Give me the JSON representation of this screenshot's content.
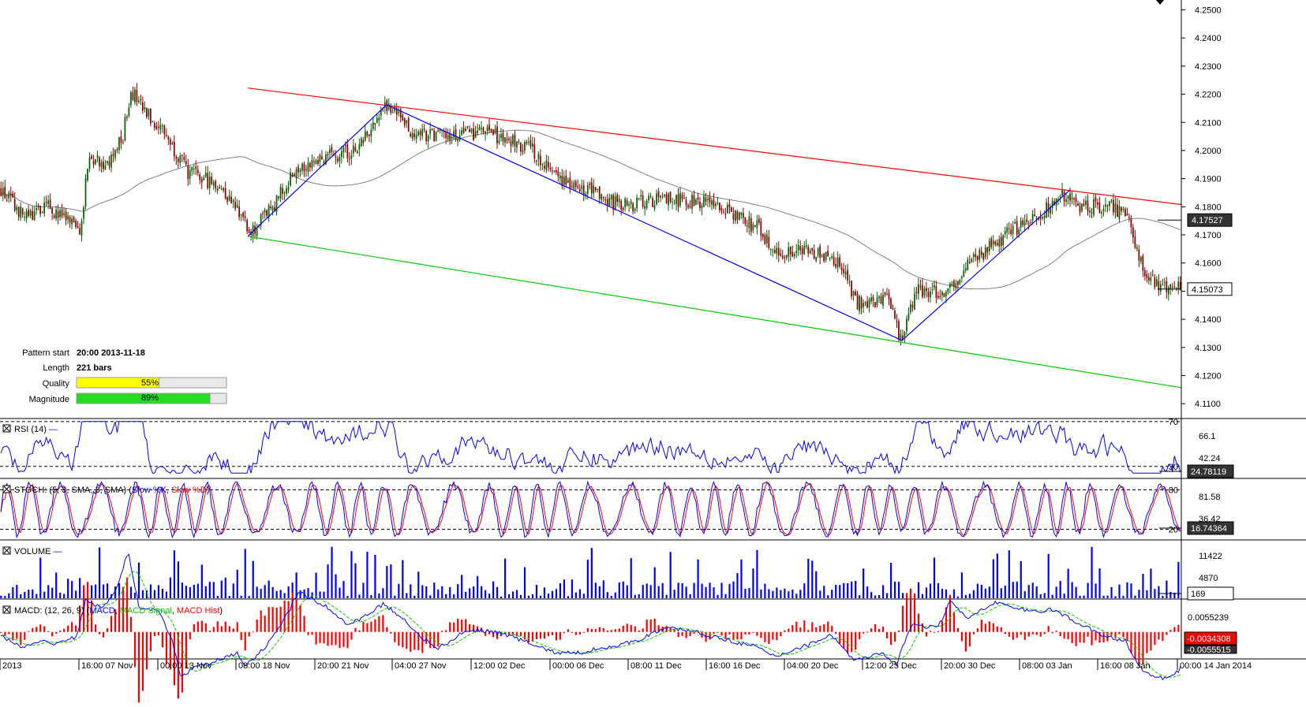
{
  "chart_data": {
    "type": "candlestick",
    "main": {
      "y_ticks": [
        "4.2500",
        "4.2400",
        "4.2300",
        "4.2200",
        "4.2100",
        "4.2000",
        "4.1900",
        "4.1800",
        "4.1700",
        "4.1600",
        "4.1500",
        "4.1400",
        "4.1300",
        "4.1200",
        "4.1100"
      ],
      "ylim": [
        4.105,
        4.2535
      ],
      "ma_last_label": "4.17527",
      "price_last_label": "4.15073",
      "price_last": 4.15073,
      "ma_last": 4.17527,
      "pattern": {
        "start_key": "Pattern start",
        "start_val": "20:00 2013-11-18",
        "length_key": "Length",
        "length_val": "221 bars",
        "quality_key": "Quality",
        "quality_pct": 55,
        "quality_label": "55%",
        "magnitude_key": "Magnitude",
        "magnitude_pct": 89,
        "magnitude_label": "89%"
      },
      "resistance_line": {
        "from": [
          0,
          4.2222
        ],
        "to": [
          1,
          4.1808
        ],
        "color": "#ff0000"
      },
      "support_line": {
        "from": [
          0,
          4.1695
        ],
        "to": [
          1,
          4.1157
        ],
        "color": "#00cc00"
      },
      "zigzag": [
        [
          4.1695
        ],
        [
          4.2163
        ],
        [
          4.1325
        ],
        [
          4.186
        ]
      ],
      "colors": {
        "bull": "#006400",
        "bear": "#8b0000",
        "ma": "#808080",
        "zigzag": "#0000ff"
      }
    },
    "x_ticks": [
      "2013",
      "16:00 07 Nov",
      "00:00 13 Nov",
      "08:00 18 Nov",
      "20:00 21 Nov",
      "04:00 27 Nov",
      "12:00 02 Dec",
      "00:00 06 Dec",
      "08:00 11 Dec",
      "16:00 16 Dec",
      "04:00 20 Dec",
      "12:00 25 Dec",
      "20:00 30 Dec",
      "08:00 03 Jan",
      "16:00 08 Jan",
      "00:00 14 Jan 2014"
    ],
    "rsi": {
      "title": "RSI (14)",
      "levels": [
        "70",
        "30"
      ],
      "right_label": "66.1",
      "right_label2": "42.24",
      "last_label": "24.78119",
      "ylim": [
        20,
        72
      ]
    },
    "stoch": {
      "title_prefix": "STOCH: (5, 3, SMA, 3, SMA) (",
      "k_name": "Slow %K",
      "d_name": "Slow %D",
      "title_suffix": ")",
      "levels": [
        "80",
        "20"
      ],
      "right_label": "81.58",
      "right_label2": "36.42",
      "last_label": "16.74364",
      "ylim": [
        5,
        95
      ],
      "colors": {
        "k": "#0000ff",
        "d": "#ff0000"
      }
    },
    "volume": {
      "title": "VOLUME",
      "right_label": "11422",
      "right_label2": "4870",
      "last_label": "169",
      "ylim": [
        0,
        16000
      ]
    },
    "macd": {
      "title_prefix": "MACD: (12, 26, 9) (",
      "macd_name": "MACD",
      "signal_name": "MACD Signal",
      "hist_name": "MACD Hist",
      "title_suffix": ")",
      "right_label": "0.0055239",
      "last_label_hist": "-0.0034308",
      "last_label_macd": "-0.0055515",
      "ylim": [
        -0.0075,
        0.009
      ],
      "colors": {
        "macd": "#0000ff",
        "signal": "#00cc00",
        "hist": "#ff0000"
      }
    }
  }
}
